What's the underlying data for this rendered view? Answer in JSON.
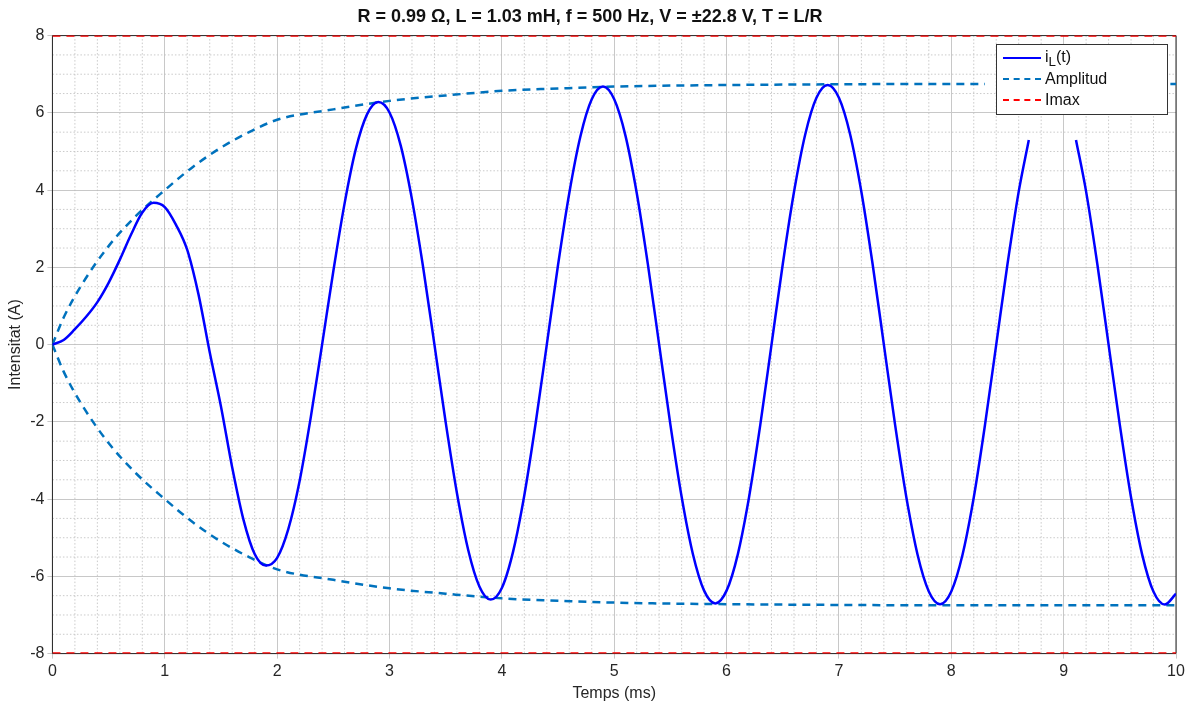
{
  "chart_data": {
    "type": "line",
    "title": "R = 0.99 Ω, L = 1.03 mH, f = 500 Hz, V = ±22.8 V, T = L/R",
    "xlabel": "Temps (ms)",
    "ylabel": "Intensitat (A)",
    "xlim": [
      0,
      10
    ],
    "xticks": [
      0,
      1,
      2,
      3,
      4,
      5,
      6,
      7,
      8,
      9,
      10
    ],
    "ylim": [
      -8,
      8
    ],
    "yticks": [
      -8,
      -6,
      -4,
      -2,
      0,
      2,
      4,
      6,
      8
    ],
    "grid": true,
    "legend": "top right",
    "marker": "none",
    "series": [
      {
        "name": "i$_{L}$(t)",
        "color": "#0000ff",
        "line_style": "solid",
        "x": [
          0,
          0.1,
          0.2,
          0.3,
          0.4,
          0.5,
          0.6,
          0.7,
          0.8,
          0.9,
          1,
          1.1,
          1.2,
          1.3,
          1.4,
          1.5,
          1.6,
          1.7,
          1.8,
          1.9,
          2,
          2.1,
          2.2,
          2.3,
          2.4,
          2.5,
          2.6,
          2.7,
          2.8,
          2.9,
          3,
          3.1,
          3.2,
          3.3,
          3.4,
          3.5,
          3.6,
          3.7,
          3.8,
          3.9,
          4,
          4.1,
          4.2,
          4.3,
          4.4,
          4.5,
          4.6,
          4.7,
          4.8,
          4.9,
          5,
          5.1,
          5.2,
          5.3,
          5.4,
          5.5,
          5.6,
          5.7,
          5.8,
          5.9,
          6,
          6.1,
          6.2,
          6.3,
          6.4,
          6.5,
          6.6,
          6.7,
          6.8,
          6.9,
          7,
          7.1,
          7.2,
          7.3,
          7.4,
          7.5,
          7.6,
          7.7,
          7.8,
          7.9,
          8,
          8.1,
          8.2,
          8.3,
          8.4,
          8.5,
          8.6,
          8.69,
          8.9,
          9.11,
          9.2,
          9.3,
          9.4,
          9.5,
          9.6,
          9.7,
          9.8,
          9.9,
          10
        ],
        "values": [
          0,
          0.12,
          0.4,
          0.72,
          1.1,
          1.6,
          2.2,
          2.85,
          3.42,
          3.67,
          3.56,
          3.1,
          2.45,
          1.3,
          -0.2,
          -1.6,
          -3.18,
          -4.53,
          -5.42,
          -5.72,
          -5.52,
          -4.77,
          -3.53,
          -1.87,
          0,
          1.9,
          3.65,
          5.06,
          5.96,
          6.28,
          6.01,
          5.15,
          3.76,
          1.99,
          0,
          -2.01,
          -3.84,
          -5.31,
          -6.26,
          -6.6,
          -6.3,
          -5.36,
          -3.9,
          -2.05,
          0,
          2.06,
          3.92,
          5.4,
          6.35,
          6.68,
          6.35,
          5.41,
          3.93,
          2.07,
          0,
          -2.07,
          -3.94,
          -5.42,
          -6.37,
          -6.7,
          -6.37,
          -5.43,
          -3.95,
          -2.08,
          0,
          2.08,
          3.95,
          5.44,
          6.39,
          6.72,
          6.39,
          5.44,
          3.95,
          2.08,
          0,
          -2.08,
          -3.95,
          -5.44,
          -6.39,
          -6.72,
          -6.39,
          -5.44,
          -3.96,
          -2.08,
          0,
          2.08,
          3.96,
          5.3,
          null,
          5.3,
          3.96,
          2.08,
          0,
          -2.08,
          -3.96,
          -5.45,
          -6.4,
          -6.73,
          -6.45
        ]
      },
      {
        "name": "Amplitud",
        "color": "#0072bd",
        "line_style": "dashed",
        "x": [
          0,
          0.1,
          0.25,
          0.5,
          0.75,
          1,
          1.25,
          1.5,
          1.75,
          2,
          2.5,
          3,
          3.5,
          4,
          4.5,
          5,
          6,
          7,
          8,
          8.3,
          9,
          9.95,
          10
        ],
        "values": [
          0,
          0.7,
          1.5,
          2.55,
          3.35,
          4.0,
          4.6,
          5.1,
          5.5,
          5.82,
          6.09,
          6.31,
          6.45,
          6.57,
          6.63,
          6.68,
          6.72,
          6.74,
          6.75,
          6.75,
          null,
          6.75,
          6.75
        ]
      },
      {
        "color": "#0072bd",
        "line_style": "dashed",
        "x": [
          0,
          0.1,
          0.25,
          0.5,
          0.75,
          1,
          1.25,
          1.5,
          1.75,
          2,
          2.5,
          3,
          3.5,
          4,
          4.5,
          5,
          6,
          7,
          8,
          9,
          10
        ],
        "values": [
          0,
          -0.7,
          -1.5,
          -2.55,
          -3.35,
          -4.0,
          -4.6,
          -5.1,
          -5.5,
          -5.82,
          -6.09,
          -6.31,
          -6.45,
          -6.57,
          -6.63,
          -6.68,
          -6.72,
          -6.74,
          -6.75,
          -6.75,
          -6.75
        ]
      },
      {
        "name": "Imax",
        "color": "#ff0000",
        "line_style": "dashed",
        "x": [
          0,
          10
        ],
        "values": [
          8,
          8
        ]
      },
      {
        "color": "#ff0000",
        "line_style": "dashed",
        "x": [
          0,
          10
        ],
        "values": [
          -8,
          -8
        ]
      }
    ]
  }
}
